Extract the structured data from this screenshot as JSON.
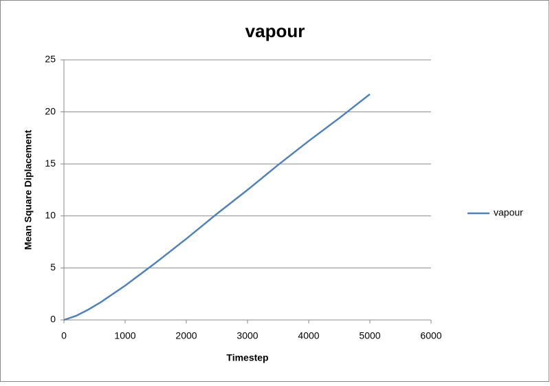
{
  "chart_data": {
    "type": "line",
    "title": "vapour",
    "x_label": "Timestep",
    "y_label": "Mean Square Diplacement",
    "x": [
      0,
      200,
      400,
      600,
      1000,
      1500,
      2000,
      2500,
      3000,
      3500,
      4000,
      4500,
      5000
    ],
    "series": [
      {
        "name": "vapour",
        "color": "#4f81bd",
        "values": [
          0,
          0.4,
          1.0,
          1.7,
          3.3,
          5.5,
          7.8,
          10.2,
          12.5,
          14.9,
          17.2,
          19.4,
          21.7
        ]
      }
    ],
    "xlim": [
      0,
      6000
    ],
    "xticks": [
      0,
      1000,
      2000,
      3000,
      4000,
      5000,
      6000
    ],
    "ylim": [
      0,
      25
    ],
    "yticks": [
      0,
      5,
      10,
      15,
      20,
      25
    ],
    "grid": true,
    "legend": "right"
  }
}
